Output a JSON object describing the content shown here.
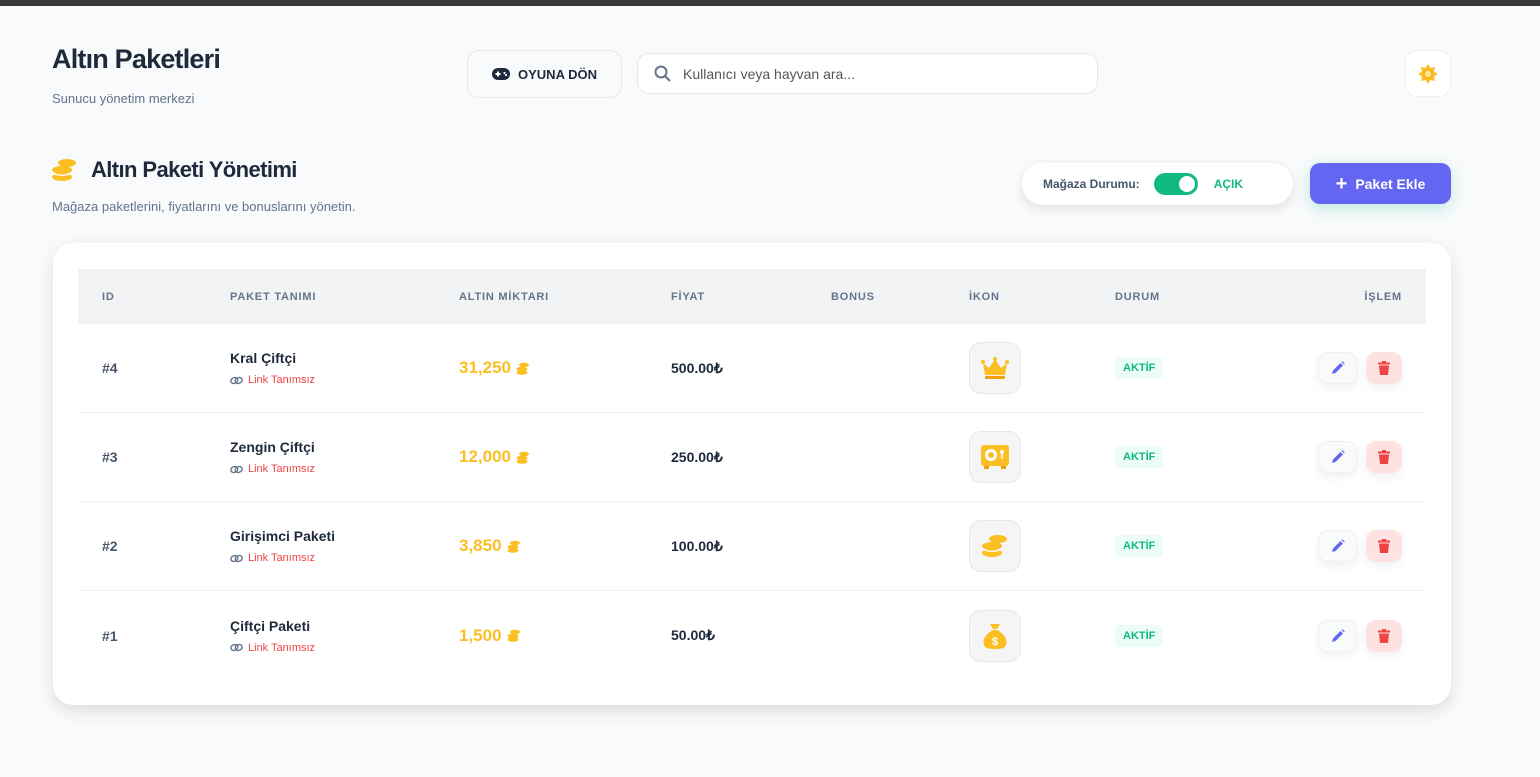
{
  "header": {
    "title": "Altın Paketleri",
    "subtitle": "Sunucu yönetim merkezi",
    "back_label": "OYUNA DÖN",
    "search_placeholder": "Kullanıcı veya hayvan ara..."
  },
  "section": {
    "title": "Altın Paketi Yönetimi",
    "subtitle": "Mağaza paketlerini, fiyatlarını ve bonuslarını yönetin.",
    "store_label": "Mağaza Durumu:",
    "store_state": "AÇIK",
    "store_open": true,
    "add_label": "Paket Ekle"
  },
  "table": {
    "columns": [
      "ID",
      "PAKET TANIMI",
      "ALTIN MİKTARI",
      "FİYAT",
      "BONUS",
      "İKON",
      "DURUM",
      "İŞLEM"
    ],
    "rows": [
      {
        "id": "#4",
        "name": "Kral Çiftçi",
        "link": "Link Tanımsız",
        "gold": "31,250",
        "price": "500.00₺",
        "bonus": "",
        "icon": "crown-icon",
        "status": "AKTİF"
      },
      {
        "id": "#3",
        "name": "Zengin Çiftçi",
        "link": "Link Tanımsız",
        "gold": "12,000",
        "price": "250.00₺",
        "bonus": "",
        "icon": "vault-icon",
        "status": "AKTİF"
      },
      {
        "id": "#2",
        "name": "Girişimci Paketi",
        "link": "Link Tanımsız",
        "gold": "3,850",
        "price": "100.00₺",
        "bonus": "",
        "icon": "coins-icon",
        "status": "AKTİF"
      },
      {
        "id": "#1",
        "name": "Çiftçi Paketi",
        "link": "Link Tanımsız",
        "gold": "1,500",
        "price": "50.00₺",
        "bonus": "",
        "icon": "money-bag-icon",
        "status": "AKTİF"
      }
    ]
  },
  "colors": {
    "accent": "#6366f1",
    "success": "#10b981",
    "gold": "#fbbf24",
    "danger": "#ef4444"
  }
}
